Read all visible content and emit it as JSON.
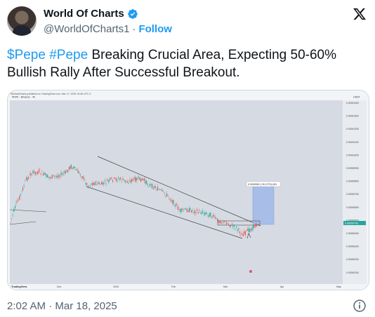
{
  "author": {
    "display_name": "World Of Charts",
    "handle": "@WorldOfCharts1",
    "separator": "·",
    "follow_label": "Follow"
  },
  "tweet": {
    "hashtag1": "$Pepe",
    "hashtag2": "#Pepe",
    "body": " Breaking Crucial Area, Expecting 50-60% Bullish Rally After Successful Breakout."
  },
  "chart_image": {
    "header_text": "WorldofCharts published on TradingView.com, Mar 17, 2025 19:48 UTC-3",
    "symbol_line": "PEPE · Binance · 4h",
    "price_label": "0.0000081 (+51.37%) 811",
    "current_price": "0.00000743",
    "y_unit": "USDT",
    "x_labels": [
      "Dec",
      "2025",
      "Feb",
      "Mar",
      "Apr",
      "May"
    ],
    "y_ticks": [
      "0.00001400",
      "0.00001300",
      "0.00001200",
      "0.00001100",
      "0.00001000",
      "0.00000900",
      "0.00000800",
      "0.00000700",
      "0.00000600",
      "0.00000500",
      "0.00000400",
      "0.00000300",
      "0.00000200",
      "0.00000100"
    ],
    "brand": "TradingView"
  },
  "footer": {
    "timestamp": "2:02 AM · Mar 18, 2025"
  },
  "colors": {
    "accent": "#1d9bf0",
    "text": "#0f1419",
    "muted": "#536471",
    "candle_up": "#26a69a",
    "candle_down": "#ef5350",
    "target_box": "#9fb4e4"
  }
}
